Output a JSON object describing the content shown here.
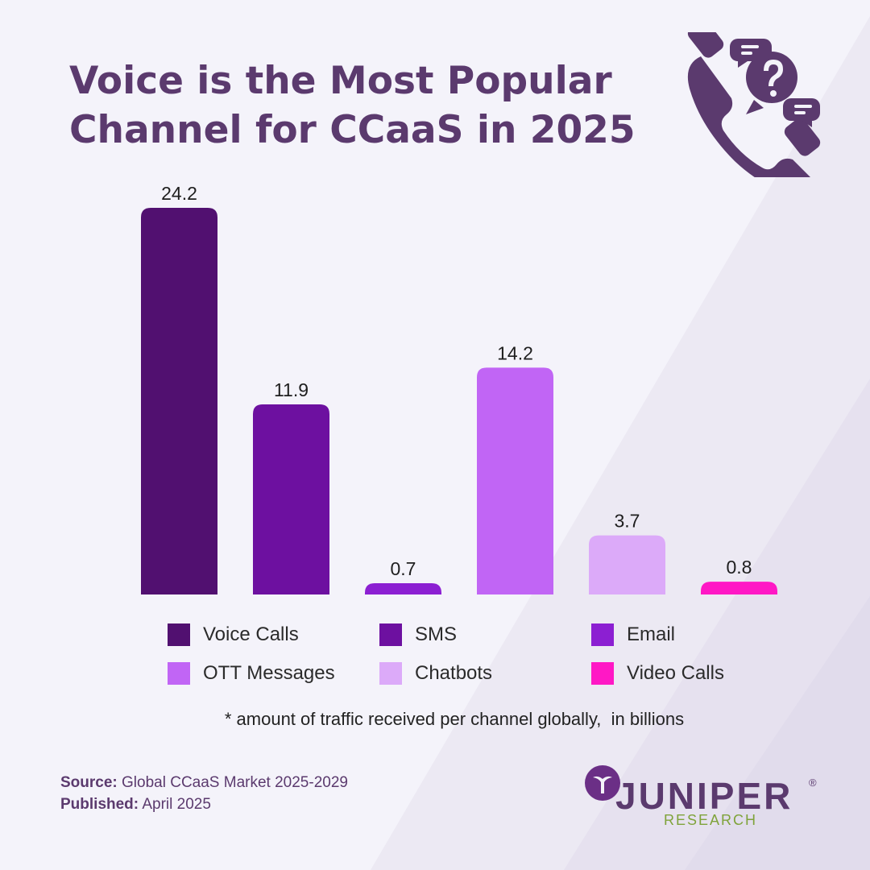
{
  "title_lines": [
    "Voice is the Most Popular",
    "Channel for CCaaS in 2025"
  ],
  "icons": {
    "header": "phone-question-chat-icon",
    "logo": "juniper-logo-icon"
  },
  "colors": {
    "title": "#5b3a6e",
    "source_text": "#5b3a6e",
    "logo_sub": "#7fa33a"
  },
  "chart_data": {
    "type": "bar",
    "categories": [
      "Voice Calls",
      "SMS",
      "Email",
      "OTT Messages",
      "Chatbots",
      "Video Calls"
    ],
    "values": [
      24.2,
      11.9,
      0.7,
      14.2,
      3.7,
      0.8
    ],
    "value_labels": [
      "24.2",
      "11.9",
      "0.7",
      "14.2",
      "3.7",
      "0.8"
    ],
    "colors": [
      "#511070",
      "#6d10a0",
      "#8c1fd2",
      "#c165f5",
      "#dcaaf9",
      "#ff18c5"
    ],
    "ylim": [
      0,
      24.2
    ],
    "grid": false,
    "legend": "bottom"
  },
  "footnote": "* amount of traffic received per channel globally,  in billions",
  "source": {
    "label": "Source:",
    "value": " Global CCaaS Market 2025-2029",
    "published_label": "Published:",
    "published_value": " April 2025"
  },
  "logo": {
    "word": "JUNIPER",
    "registered": "®",
    "sub": "RESEARCH"
  }
}
